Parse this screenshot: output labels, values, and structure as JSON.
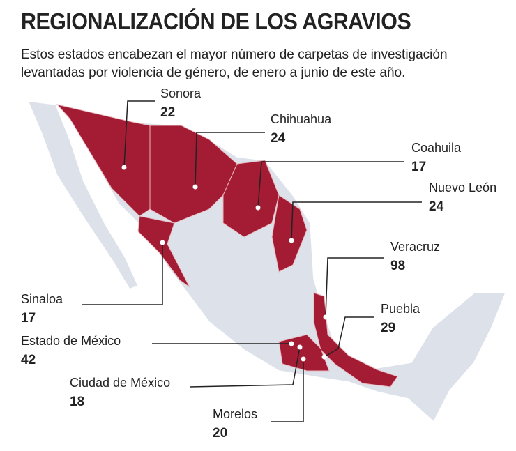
{
  "header": {
    "title": "REGIONALIZACIÓN DE LOS AGRAVIOS",
    "subtitle": "Estos estados encabezan el mayor número de carpetas de investigación levantadas por violencia de género, de enero a junio de este año."
  },
  "states": [
    {
      "name": "Sonora",
      "value": 22
    },
    {
      "name": "Chihuahua",
      "value": 24
    },
    {
      "name": "Coahuila",
      "value": 17
    },
    {
      "name": "Nuevo León",
      "value": 24
    },
    {
      "name": "Veracruz",
      "value": 98
    },
    {
      "name": "Puebla",
      "value": 29
    },
    {
      "name": "Sinaloa",
      "value": 17
    },
    {
      "name": "Estado de México",
      "value": 42
    },
    {
      "name": "Ciudad de México",
      "value": 18
    },
    {
      "name": "Morelos",
      "value": 20
    }
  ]
}
